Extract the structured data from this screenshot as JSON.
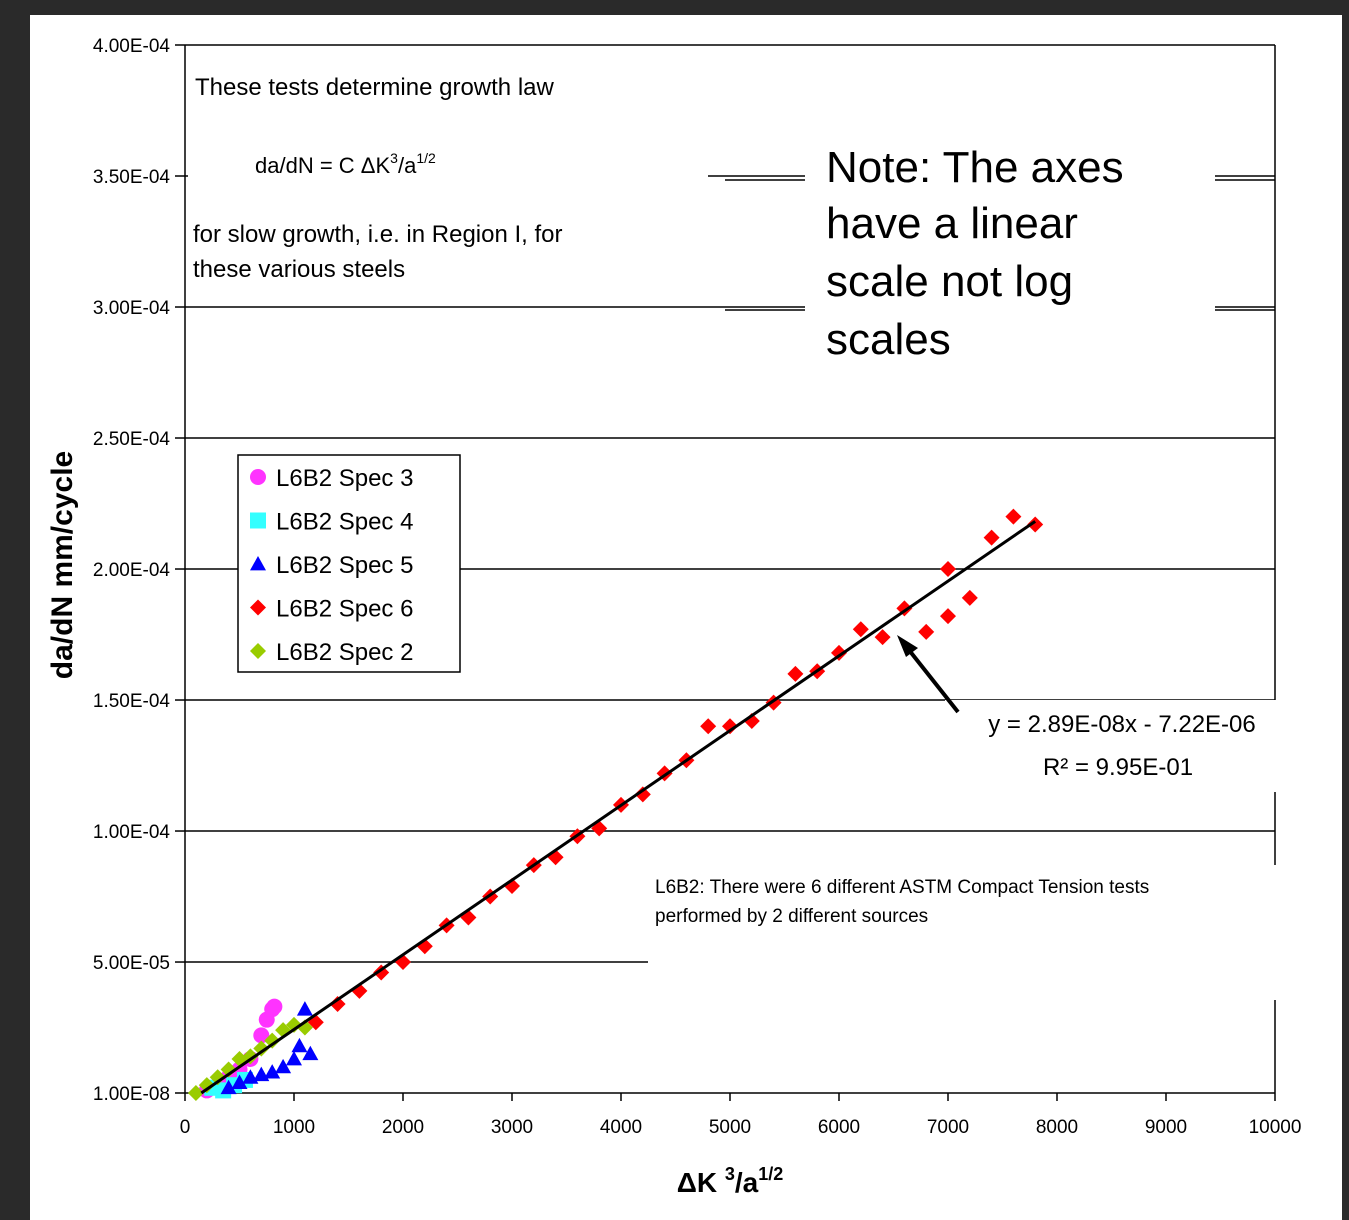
{
  "chart_data": {
    "type": "scatter",
    "xlabel": {
      "base": "ΔK ",
      "sup1": "3",
      "mid": "/a",
      "sup2": "1/2"
    },
    "ylabel": "da/dN mm/cycle",
    "xlim": [
      0,
      10000
    ],
    "xticks": [
      0,
      1000,
      2000,
      3000,
      4000,
      5000,
      6000,
      7000,
      8000,
      9000,
      10000
    ],
    "ylim": [
      1e-08,
      0.0004
    ],
    "yticks": [
      {
        "value": 1e-08,
        "label": "1.00E-08"
      },
      {
        "value": 5e-05,
        "label": "5.00E-05"
      },
      {
        "value": 0.0001,
        "label": "1.00E-04"
      },
      {
        "value": 0.00015,
        "label": "1.50E-04"
      },
      {
        "value": 0.0002,
        "label": "2.00E-04"
      },
      {
        "value": 0.00025,
        "label": "2.50E-04"
      },
      {
        "value": 0.0003,
        "label": "3.00E-04"
      },
      {
        "value": 0.00035,
        "label": "3.50E-04"
      },
      {
        "value": 0.0004,
        "label": "4.00E-04"
      }
    ],
    "grid": true,
    "legend": "upper left",
    "series": [
      {
        "name": "L6B2 Spec 3",
        "color": "#ff33ff",
        "marker": "circle",
        "x": [
          200,
          300,
          400,
          500,
          600,
          700,
          750,
          800,
          820
        ],
        "values": [
          1e-06,
          3e-06,
          6e-06,
          9e-06,
          1.3e-05,
          2.2e-05,
          2.8e-05,
          3.2e-05,
          3.3e-05
        ]
      },
      {
        "name": "L6B2 Spec 4",
        "color": "#33ffff",
        "marker": "square",
        "x": [
          250,
          350,
          450,
          550
        ],
        "values": [
          2e-06,
          1e-06,
          3e-06,
          5e-06
        ]
      },
      {
        "name": "L6B2 Spec 5",
        "color": "#0000ff",
        "marker": "triangle",
        "x": [
          400,
          500,
          600,
          700,
          800,
          900,
          1000,
          1050,
          1100,
          1150
        ],
        "values": [
          2e-06,
          4e-06,
          6e-06,
          7e-06,
          8e-06,
          1e-05,
          1.3e-05,
          1.8e-05,
          3.2e-05,
          1.5e-05
        ]
      },
      {
        "name": "L6B2 Spec 6",
        "color": "#ff0000",
        "marker": "diamond",
        "x": [
          1200,
          1400,
          1600,
          1800,
          2000,
          2200,
          2400,
          2600,
          2800,
          3000,
          3200,
          3400,
          3600,
          3800,
          4000,
          4200,
          4400,
          4600,
          4800,
          5000,
          5200,
          5400,
          5600,
          5800,
          6000,
          6200,
          6400,
          6600,
          6800,
          7000,
          7000,
          7200,
          7400,
          7600,
          7800
        ],
        "values": [
          2.7e-05,
          3.4e-05,
          3.9e-05,
          4.6e-05,
          5e-05,
          5.6e-05,
          6.4e-05,
          6.7e-05,
          7.5e-05,
          7.9e-05,
          8.7e-05,
          9e-05,
          9.8e-05,
          0.000101,
          0.00011,
          0.000114,
          0.000122,
          0.000127,
          0.00014,
          0.00014,
          0.000142,
          0.000149,
          0.00016,
          0.000161,
          0.000168,
          0.000177,
          0.000174,
          0.000185,
          0.000176,
          0.000182,
          0.0002,
          0.000189,
          0.000212,
          0.00022,
          0.000217
        ]
      },
      {
        "name": "L6B2 Spec 2",
        "color": "#99cc00",
        "marker": "diamond",
        "x": [
          100,
          200,
          300,
          400,
          500,
          600,
          700,
          800,
          900,
          1000,
          1100
        ],
        "values": [
          1e-08,
          3e-06,
          6e-06,
          9e-06,
          1.3e-05,
          1.4e-05,
          1.7e-05,
          2e-05,
          2.4e-05,
          2.6e-05,
          2.5e-05
        ]
      }
    ],
    "trendline": {
      "x": [
        150,
        7800
      ],
      "slope": 2.89e-08,
      "intercept": -7.22e-06,
      "label": "y = 2.89E-08x - 7.22E-06",
      "r2_label": "R² = 9.95E-01"
    },
    "annotations": {
      "intro": "These tests determine growth law",
      "formula": {
        "base": "da/dN = C ΔK",
        "sup1": "3",
        "mid": "/a",
        "sup2": "1/2"
      },
      "scope": [
        "for slow growth, i.e. in Region I, for",
        "these various steels"
      ],
      "note": [
        "Note: The axes",
        "have a linear",
        "scale not log",
        "scales"
      ],
      "sources": [
        "L6B2: There were 6 different ASTM Compact Tension tests",
        "performed by 2 different sources"
      ]
    }
  }
}
